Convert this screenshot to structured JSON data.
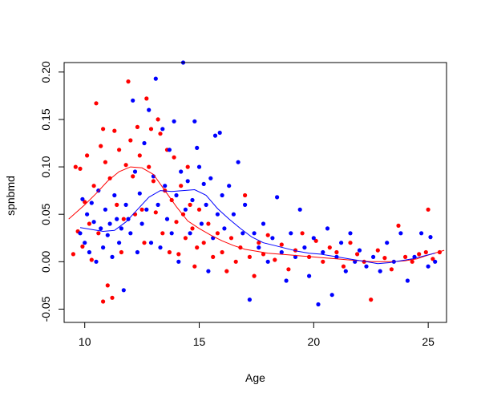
{
  "chart_data": {
    "type": "scatter",
    "title": "",
    "xlabel": "Age",
    "ylabel": "spnbmd",
    "xlim": [
      9.1,
      25.8
    ],
    "ylim": [
      -0.064,
      0.21
    ],
    "xticks": [
      10,
      15,
      20,
      25
    ],
    "yticks": [
      -0.05,
      0.0,
      0.05,
      0.1,
      0.15,
      0.2
    ],
    "ytick_labels": [
      "-0.05",
      "0.00",
      "0.05",
      "0.10",
      "0.15",
      "0.20"
    ],
    "grid": false,
    "legend": "none",
    "series": [
      {
        "color": "#ff0000",
        "points": [
          [
            9.5,
            0.008
          ],
          [
            9.6,
            0.1
          ],
          [
            9.7,
            0.032
          ],
          [
            9.8,
            0.098
          ],
          [
            9.9,
            0.016
          ],
          [
            10.0,
            0.063
          ],
          [
            10.1,
            0.112
          ],
          [
            10.2,
            0.04
          ],
          [
            10.3,
            0.002
          ],
          [
            10.4,
            0.08
          ],
          [
            10.5,
            0.167
          ],
          [
            10.6,
            0.03
          ],
          [
            10.7,
            0.122
          ],
          [
            10.8,
            -0.042
          ],
          [
            10.8,
            0.14
          ],
          [
            10.9,
            0.105
          ],
          [
            11.0,
            -0.025
          ],
          [
            11.1,
            0.088
          ],
          [
            11.2,
            -0.038
          ],
          [
            11.3,
            0.138
          ],
          [
            11.4,
            0.06
          ],
          [
            11.5,
            0.118
          ],
          [
            11.6,
            0.01
          ],
          [
            11.7,
            0.045
          ],
          [
            11.8,
            0.102
          ],
          [
            11.9,
            0.19
          ],
          [
            12.0,
            0.128
          ],
          [
            12.1,
            0.09
          ],
          [
            12.2,
            0.05
          ],
          [
            12.3,
            0.142
          ],
          [
            12.4,
            0.112
          ],
          [
            12.5,
            0.055
          ],
          [
            12.6,
            0.02
          ],
          [
            12.7,
            0.172
          ],
          [
            12.8,
            0.1
          ],
          [
            12.9,
            0.14
          ],
          [
            13.0,
            0.085
          ],
          [
            13.1,
            0.052
          ],
          [
            13.2,
            0.15
          ],
          [
            13.3,
            0.135
          ],
          [
            13.4,
            0.03
          ],
          [
            13.5,
            0.075
          ],
          [
            13.6,
            0.118
          ],
          [
            13.7,
            0.01
          ],
          [
            13.8,
            0.065
          ],
          [
            13.9,
            0.11
          ],
          [
            14.0,
            0.042
          ],
          [
            14.1,
            0.008
          ],
          [
            14.2,
            0.08
          ],
          [
            14.3,
            0.05
          ],
          [
            14.4,
            0.025
          ],
          [
            14.5,
            0.1
          ],
          [
            14.6,
            0.06
          ],
          [
            14.7,
            0.035
          ],
          [
            14.8,
            -0.005
          ],
          [
            14.9,
            0.015
          ],
          [
            15.0,
            0.055
          ],
          [
            15.2,
            0.02
          ],
          [
            15.4,
            0.04
          ],
          [
            15.6,
            0.005
          ],
          [
            15.8,
            0.03
          ],
          [
            16.0,
            0.01
          ],
          [
            16.2,
            -0.01
          ],
          [
            16.4,
            0.025
          ],
          [
            16.6,
            0.0
          ],
          [
            16.8,
            0.015
          ],
          [
            17.0,
            0.07
          ],
          [
            17.2,
            0.005
          ],
          [
            17.4,
            -0.015
          ],
          [
            17.6,
            0.02
          ],
          [
            17.8,
            0.008
          ],
          [
            18.0,
            0.028
          ],
          [
            18.3,
            0.002
          ],
          [
            18.6,
            0.018
          ],
          [
            18.9,
            -0.008
          ],
          [
            19.2,
            0.012
          ],
          [
            19.5,
            0.03
          ],
          [
            19.8,
            0.005
          ],
          [
            20.1,
            0.022
          ],
          [
            20.4,
            0.0
          ],
          [
            20.7,
            0.015
          ],
          [
            21.0,
            0.01
          ],
          [
            21.3,
            -0.005
          ],
          [
            21.6,
            0.02
          ],
          [
            21.9,
            0.008
          ],
          [
            22.2,
            0.0
          ],
          [
            22.5,
            -0.04
          ],
          [
            22.8,
            0.012
          ],
          [
            23.1,
            0.004
          ],
          [
            23.4,
            -0.008
          ],
          [
            23.7,
            0.038
          ],
          [
            24.0,
            0.005
          ],
          [
            24.3,
            0.0
          ],
          [
            24.6,
            0.008
          ],
          [
            24.9,
            0.01
          ],
          [
            25.0,
            0.055
          ],
          [
            25.2,
            0.003
          ],
          [
            25.5,
            0.01
          ]
        ],
        "smooth": [
          [
            9.3,
            0.045
          ],
          [
            10.0,
            0.06
          ],
          [
            10.5,
            0.072
          ],
          [
            11.0,
            0.085
          ],
          [
            11.5,
            0.095
          ],
          [
            12.0,
            0.1
          ],
          [
            12.5,
            0.099
          ],
          [
            13.0,
            0.092
          ],
          [
            13.5,
            0.075
          ],
          [
            14.0,
            0.058
          ],
          [
            14.5,
            0.043
          ],
          [
            15.0,
            0.035
          ],
          [
            15.5,
            0.028
          ],
          [
            16.0,
            0.022
          ],
          [
            16.5,
            0.017
          ],
          [
            17.0,
            0.013
          ],
          [
            17.5,
            0.011
          ],
          [
            18.0,
            0.009
          ],
          [
            18.5,
            0.008
          ],
          [
            19.0,
            0.007
          ],
          [
            19.5,
            0.006
          ],
          [
            20.0,
            0.005
          ],
          [
            20.5,
            0.004
          ],
          [
            21.0,
            0.003
          ],
          [
            21.5,
            0.002
          ],
          [
            22.0,
            0.001
          ],
          [
            22.5,
            0.0
          ],
          [
            23.0,
            0.0
          ],
          [
            23.5,
            0.0
          ],
          [
            24.0,
            0.001
          ],
          [
            24.5,
            0.003
          ],
          [
            25.0,
            0.007
          ],
          [
            25.7,
            0.012
          ]
        ]
      },
      {
        "color": "#0000ff",
        "points": [
          [
            9.8,
            0.03
          ],
          [
            9.9,
            0.066
          ],
          [
            10.0,
            0.02
          ],
          [
            10.1,
            0.05
          ],
          [
            10.2,
            0.01
          ],
          [
            10.3,
            0.062
          ],
          [
            10.4,
            0.042
          ],
          [
            10.5,
            0.0
          ],
          [
            10.6,
            0.075
          ],
          [
            10.7,
            0.035
          ],
          [
            10.8,
            0.015
          ],
          [
            10.9,
            0.055
          ],
          [
            11.0,
            0.028
          ],
          [
            11.1,
            0.04
          ],
          [
            11.2,
            0.005
          ],
          [
            11.3,
            0.07
          ],
          [
            11.4,
            0.045
          ],
          [
            11.5,
            0.02
          ],
          [
            11.6,
            0.035
          ],
          [
            11.7,
            -0.03
          ],
          [
            11.8,
            0.06
          ],
          [
            11.9,
            0.045
          ],
          [
            12.0,
            0.03
          ],
          [
            12.1,
            0.17
          ],
          [
            12.2,
            0.095
          ],
          [
            12.3,
            0.01
          ],
          [
            12.4,
            0.072
          ],
          [
            12.5,
            0.04
          ],
          [
            12.6,
            0.125
          ],
          [
            12.7,
            0.055
          ],
          [
            12.8,
            0.16
          ],
          [
            12.9,
            0.02
          ],
          [
            13.0,
            0.09
          ],
          [
            13.1,
            0.193
          ],
          [
            13.2,
            0.06
          ],
          [
            13.3,
            0.015
          ],
          [
            13.4,
            0.14
          ],
          [
            13.5,
            0.08
          ],
          [
            13.6,
            0.045
          ],
          [
            13.7,
            0.118
          ],
          [
            13.8,
            0.03
          ],
          [
            13.9,
            0.148
          ],
          [
            14.0,
            0.07
          ],
          [
            14.1,
            0.0
          ],
          [
            14.2,
            0.095
          ],
          [
            14.3,
            0.21
          ],
          [
            14.4,
            0.055
          ],
          [
            14.5,
            0.085
          ],
          [
            14.6,
            0.03
          ],
          [
            14.7,
            0.065
          ],
          [
            14.8,
            0.148
          ],
          [
            14.9,
            0.12
          ],
          [
            15.0,
            0.1
          ],
          [
            15.1,
            0.04
          ],
          [
            15.2,
            0.082
          ],
          [
            15.3,
            0.06
          ],
          [
            15.4,
            -0.01
          ],
          [
            15.5,
            0.088
          ],
          [
            15.6,
            0.025
          ],
          [
            15.7,
            0.133
          ],
          [
            15.8,
            0.05
          ],
          [
            15.9,
            0.136
          ],
          [
            16.0,
            0.07
          ],
          [
            16.1,
            0.035
          ],
          [
            16.3,
            0.08
          ],
          [
            16.5,
            0.05
          ],
          [
            16.7,
            0.105
          ],
          [
            16.9,
            0.03
          ],
          [
            17.0,
            0.06
          ],
          [
            17.2,
            -0.04
          ],
          [
            17.4,
            0.03
          ],
          [
            17.6,
            0.015
          ],
          [
            17.8,
            0.04
          ],
          [
            18.0,
            0.0
          ],
          [
            18.2,
            0.025
          ],
          [
            18.4,
            0.068
          ],
          [
            18.6,
            0.01
          ],
          [
            18.8,
            -0.02
          ],
          [
            19.0,
            0.03
          ],
          [
            19.2,
            0.005
          ],
          [
            19.4,
            0.055
          ],
          [
            19.6,
            0.015
          ],
          [
            19.8,
            -0.015
          ],
          [
            20.0,
            0.025
          ],
          [
            20.2,
            -0.045
          ],
          [
            20.4,
            0.01
          ],
          [
            20.6,
            0.035
          ],
          [
            20.8,
            -0.035
          ],
          [
            21.0,
            0.005
          ],
          [
            21.2,
            0.02
          ],
          [
            21.4,
            -0.01
          ],
          [
            21.6,
            0.03
          ],
          [
            21.8,
            0.0
          ],
          [
            22.0,
            0.012
          ],
          [
            22.3,
            -0.005
          ],
          [
            22.6,
            0.005
          ],
          [
            22.9,
            -0.01
          ],
          [
            23.2,
            0.02
          ],
          [
            23.5,
            0.0
          ],
          [
            23.8,
            0.03
          ],
          [
            24.1,
            -0.02
          ],
          [
            24.4,
            0.005
          ],
          [
            24.7,
            0.03
          ],
          [
            25.0,
            -0.005
          ],
          [
            25.1,
            0.026
          ],
          [
            25.3,
            0.0
          ]
        ],
        "smooth": [
          [
            9.8,
            0.036
          ],
          [
            10.3,
            0.034
          ],
          [
            10.8,
            0.032
          ],
          [
            11.3,
            0.033
          ],
          [
            11.8,
            0.042
          ],
          [
            12.3,
            0.055
          ],
          [
            12.8,
            0.068
          ],
          [
            13.3,
            0.075
          ],
          [
            13.8,
            0.074
          ],
          [
            14.3,
            0.075
          ],
          [
            14.8,
            0.076
          ],
          [
            15.3,
            0.07
          ],
          [
            15.8,
            0.056
          ],
          [
            16.3,
            0.045
          ],
          [
            16.8,
            0.035
          ],
          [
            17.3,
            0.026
          ],
          [
            17.8,
            0.02
          ],
          [
            18.3,
            0.017
          ],
          [
            18.8,
            0.014
          ],
          [
            19.3,
            0.011
          ],
          [
            19.8,
            0.009
          ],
          [
            20.3,
            0.008
          ],
          [
            20.8,
            0.006
          ],
          [
            21.3,
            0.004
          ],
          [
            21.8,
            0.002
          ],
          [
            22.3,
            0.0
          ],
          [
            22.8,
            -0.002
          ],
          [
            23.3,
            -0.001
          ],
          [
            23.8,
            0.001
          ],
          [
            24.3,
            0.003
          ],
          [
            24.8,
            0.006
          ],
          [
            25.3,
            0.009
          ]
        ]
      }
    ]
  }
}
